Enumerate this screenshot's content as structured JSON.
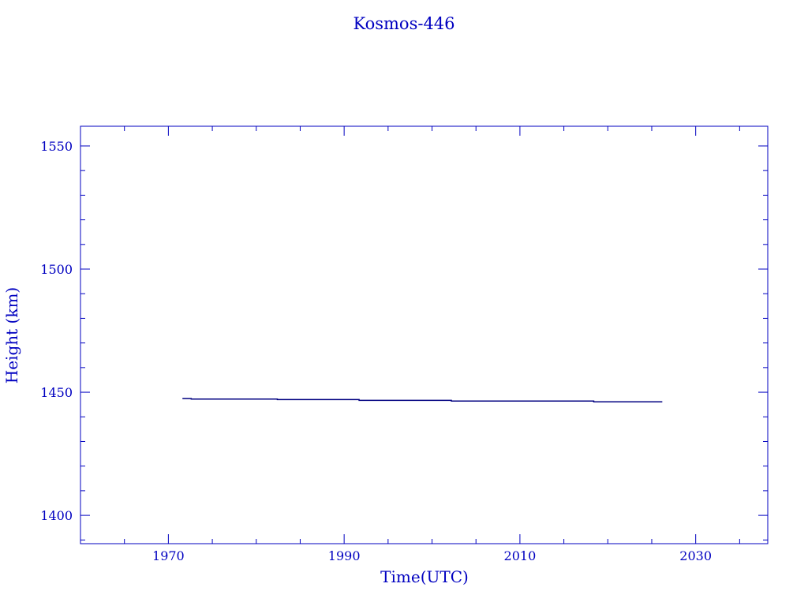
{
  "chart_data": {
    "type": "line",
    "title": "Kosmos-446",
    "xlabel": "Time(UTC)",
    "ylabel": "Height (km)",
    "xlim": [
      1960,
      2038.2
    ],
    "ylim": [
      1388.5,
      1558
    ],
    "xticks": [
      1970,
      1990,
      2010,
      2030
    ],
    "yticks": [
      1400,
      1450,
      1500,
      1550
    ],
    "x_minor_step": 5,
    "y_minor_step": 10,
    "grid": false,
    "colors": {
      "axis": "#0000c0",
      "line": "#000080"
    },
    "series": [
      {
        "x": [
          1971.6,
          1972.6,
          1972.6,
          1982.4,
          1982.4,
          1991.7,
          1991.7,
          2002.2,
          2002.2,
          2018.4,
          2018.4,
          2026.2
        ],
        "y": [
          1447.4,
          1447.4,
          1447.2,
          1447.2,
          1447.0,
          1447.0,
          1446.7,
          1446.7,
          1446.4,
          1446.4,
          1446.1,
          1446.1
        ]
      }
    ]
  }
}
